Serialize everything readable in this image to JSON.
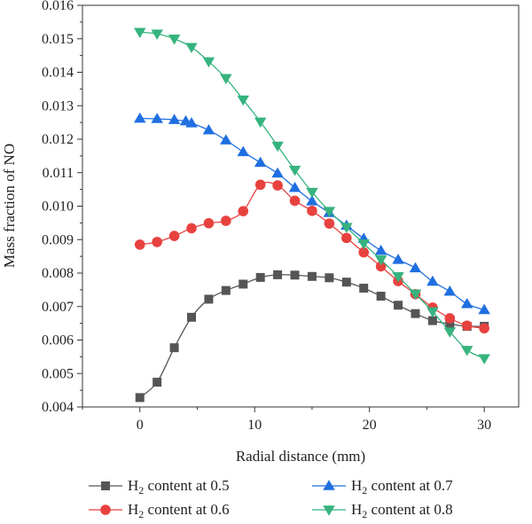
{
  "chart_data": {
    "type": "line",
    "xlabel": "Radial distance (mm)",
    "ylabel": "Mass fraction of NO",
    "xlim": [
      -5,
      33
    ],
    "ylim": [
      0.004,
      0.016
    ],
    "xticks": [
      0,
      10,
      20,
      30
    ],
    "yticks": [
      0.004,
      0.005,
      0.006,
      0.007,
      0.008,
      0.009,
      0.01,
      0.011,
      0.012,
      0.013,
      0.014,
      0.015,
      0.016
    ],
    "ytick_labels": [
      "0.004",
      "0.005",
      "0.006",
      "0.007",
      "0.008",
      "0.009",
      "0.010",
      "0.011",
      "0.012",
      "0.013",
      "0.014",
      "0.015",
      "0.016"
    ],
    "xtick_labels": [
      "0",
      "10",
      "20",
      "30"
    ],
    "legend_position": "bottom",
    "series": [
      {
        "name_prefix": "H",
        "name_sub": "2",
        "name_suffix": " content at 0.5",
        "color": "#555555",
        "marker": "square",
        "x": [
          0,
          1.5,
          3,
          4.5,
          6,
          7.5,
          9,
          10.5,
          12,
          13.5,
          15,
          16.5,
          18,
          19.5,
          21,
          22.5,
          24,
          25.5,
          27,
          28.5,
          30
        ],
        "y": [
          0.00428,
          0.00474,
          0.00577,
          0.00668,
          0.00722,
          0.00748,
          0.00767,
          0.00787,
          0.00795,
          0.00794,
          0.0079,
          0.00786,
          0.00773,
          0.00755,
          0.00731,
          0.00704,
          0.00679,
          0.00658,
          0.00648,
          0.00641,
          0.00641
        ]
      },
      {
        "name_prefix": "H",
        "name_sub": "2",
        "name_suffix": " content at 0.6",
        "color": "#e8423f",
        "marker": "circle",
        "x": [
          0,
          1.5,
          3,
          4.5,
          6,
          7.5,
          9,
          10.5,
          12,
          13.5,
          15,
          16.5,
          18,
          19.5,
          21,
          22.5,
          24,
          25.5,
          27,
          28.5,
          30
        ],
        "y": [
          0.00885,
          0.00893,
          0.00911,
          0.00934,
          0.00949,
          0.00956,
          0.00985,
          0.01064,
          0.01062,
          0.01016,
          0.00986,
          0.00948,
          0.00905,
          0.00862,
          0.0082,
          0.00776,
          0.00737,
          0.00697,
          0.00665,
          0.00643,
          0.00635
        ]
      },
      {
        "name_prefix": "H",
        "name_sub": "2",
        "name_suffix": " content at 0.7",
        "color": "#1f6fe0",
        "marker": "triangle-up",
        "x": [
          0,
          1.5,
          3,
          4,
          4.5,
          6,
          7.5,
          9,
          10.5,
          12,
          13.5,
          15,
          16.5,
          18,
          19.5,
          21,
          22.5,
          24,
          25.5,
          27,
          28.5,
          30
        ],
        "y": [
          0.01262,
          0.01261,
          0.01258,
          0.01254,
          0.01248,
          0.01227,
          0.01197,
          0.01162,
          0.0113,
          0.01098,
          0.01055,
          0.01015,
          0.0098,
          0.00942,
          0.00903,
          0.00867,
          0.0084,
          0.00815,
          0.00775,
          0.00745,
          0.00708,
          0.0069
        ]
      },
      {
        "name_prefix": "H",
        "name_sub": "2",
        "name_suffix": " content at 0.8",
        "color": "#36b37e",
        "marker": "triangle-down",
        "x": [
          0,
          1.5,
          3,
          4.5,
          6,
          7.5,
          9,
          10.5,
          12,
          13.5,
          15,
          16.5,
          18,
          19.5,
          21,
          22.5,
          24,
          25.5,
          27,
          28.5,
          30
        ],
        "y": [
          0.0152,
          0.01515,
          0.015,
          0.01475,
          0.01432,
          0.01382,
          0.01318,
          0.01252,
          0.0118,
          0.01108,
          0.01042,
          0.00985,
          0.00937,
          0.00888,
          0.0084,
          0.0079,
          0.00738,
          0.00685,
          0.00625,
          0.0057,
          0.00545
        ]
      }
    ]
  }
}
